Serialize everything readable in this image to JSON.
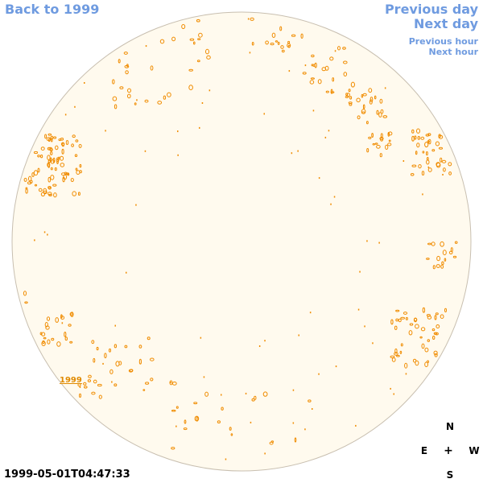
{
  "nav": {
    "back": "Back to 1999",
    "previous_day": "Previous day",
    "next_day": "Next day",
    "previous_hour": "Previous hour",
    "next_hour": "Next hour"
  },
  "disk": {
    "year_label": "1999",
    "fill_color": "#fffaee",
    "border_color": "#c8bfb0",
    "contour_color": "#f08c00"
  },
  "compass": {
    "north": "N",
    "south": "S",
    "east": "E",
    "west": "W",
    "center": "+"
  },
  "timestamp": "1999-05-01T04:47:33",
  "colors": {
    "link": "#6f9be0",
    "contour": "#f08c00"
  }
}
